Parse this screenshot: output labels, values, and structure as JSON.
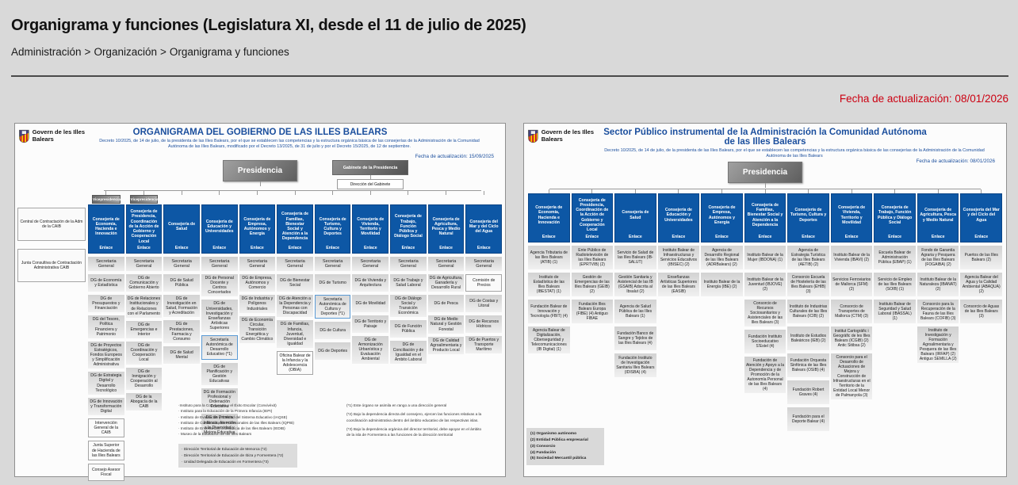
{
  "page": {
    "title": "Organigrama y funciones (Legislatura XI, desde el 11 de julio de 2025)",
    "breadcrumb": [
      "Administración",
      "Organización",
      "Organigrama y funciones"
    ],
    "breadcrumb_separator": ">",
    "update_date": "Fecha de actualización: 08/01/2026",
    "accent_red": "#cc0011",
    "accent_blue": "#1a4e9d",
    "consejeria_blue": "#0d57a5"
  },
  "left_chart": {
    "logo_text": "Govern de les Illes Balears",
    "title": "ORGANIGRAMA DEL GOBIERNO DE LAS ILLES BALEARS",
    "subtitle": "Decreto 10/2025, de 14 de julio, de la presidenta de las Illes Balears, por el que se establecen las competencias y la estructura orgánica básica de las consejerías de la Administración de la Comunidad Autónoma de las Illes Balears, modificado por el Decreto 13/2025, de 31 de julio y por el Decreto 15/2025, de 12 de septiembre.",
    "update_date": "Fecha de actualización: 15/09/2025",
    "presidencia": "Presidencia",
    "gabinete": "Gabinete de la Presidencia",
    "direccion_gabinete": "Dirección del Gabinete",
    "enlace_label": "Enlace",
    "secretaria_general": "Secretaria General",
    "side_boxes": [
      "Central de Contractación de la Adm de la CAIB",
      "Junta Consultiva de Contractación Administrativa CAIB"
    ],
    "columns": [
      {
        "name": "Consejería de Economía, Hacienda e Innovación",
        "vice": "Vicepresidencia",
        "boxes": [
          {
            "t": "DG de Economía y Estadística"
          },
          {
            "t": "DG de Presupuestos y Financiación"
          },
          {
            "t": "DG del Tesoro, Política Financiera y Patrimonio"
          },
          {
            "t": "DG de Proyectos Estratégicos, Fondos Europeos y Simplificación Administrativa"
          },
          {
            "t": "DG de Estrategia Digital y Desarrollo Tecnológico"
          },
          {
            "t": "DG de Innovación y Transformación Digital"
          },
          {
            "t": "Intervención General de la CAIB",
            "s": "outline"
          },
          {
            "t": "Junta Superior de Hacienda de las Illes Balears",
            "s": "outline"
          },
          {
            "t": "Consejo Asesor Fiscal",
            "s": "outline"
          }
        ]
      },
      {
        "name": "Consejería de Presidencia, Coordinación de la Acción de Gobierno y Cooperación Local",
        "vice": "Vicepresidencia",
        "boxes": [
          {
            "t": "DG de Comunicación y Gobierno Abierto"
          },
          {
            "t": "DG de Relaciones Institucionales y de Relaciones con el Parlamento"
          },
          {
            "t": "DG de Emergencias e Interior"
          },
          {
            "t": "DG de Coordinación y Cooperación Local"
          },
          {
            "t": "DG de Inmigración y Cooperación al Desarrollo"
          },
          {
            "t": "DG de la Abogacía de la CAIB"
          }
        ]
      },
      {
        "name": "Consejería de Salud",
        "boxes": [
          {
            "t": "DG de Salud Pública"
          },
          {
            "t": "DG de Investigación en Salud, Formación y Acreditación"
          },
          {
            "t": "DG de Prestaciones, Farmacia y Consumo"
          },
          {
            "t": "DG de Salud Mental"
          }
        ]
      },
      {
        "name": "Consejería de Educación y Universidades",
        "boxes": [
          {
            "t": "DG de Personal Docente y Centros Concertados"
          },
          {
            "t": "DG de Universidades, Investigación y Enseñanzas Artísticas Superiores"
          },
          {
            "t": "Secretaría Autonómica de Desarrollo Educativo (*1)",
            "s": "sa"
          },
          {
            "t": "DG de Planificación y Gestión Educativas"
          },
          {
            "t": "DG de Formación Profesional y Ordenación Educativa"
          },
          {
            "t": "DG de Primera Infancia, Atención a la Diversidad y Mejora Educativa"
          }
        ]
      },
      {
        "name": "Consejería de Empresa, Autónomos y Energía",
        "boxes": [
          {
            "t": "DG de Empresa, Autónomos y Comercio"
          },
          {
            "t": "DG de Industria y Polígonos Industriales"
          },
          {
            "t": "DG de Economía Circular, Transición Energética y Cambio Climático"
          }
        ]
      },
      {
        "name": "Consejería de Familias, Bienestar Social y Atención a la Dependencia",
        "boxes": [
          {
            "t": "DG de Bienestar Social"
          },
          {
            "t": "DG de Atención a la Dependencia y Personas con Discapacidad"
          },
          {
            "t": "DG de Familias, Infancia, Juventud, Diversidad e Igualdad"
          },
          {
            "t": "Oficina Balear de la Infancia y la Adolescencia (OBIA)",
            "s": "outline"
          }
        ]
      },
      {
        "name": "Consejería de Turismo, Cultura y Deportes",
        "boxes": [
          {
            "t": "DG de Turismo"
          },
          {
            "t": "Secretaría Autonómica de Cultura y Deportes (*1)",
            "s": "sa"
          },
          {
            "t": "DG de Cultura"
          },
          {
            "t": "DG de Deportes"
          }
        ]
      },
      {
        "name": "Consejería de Vivienda, Territorio y Movilidad",
        "boxes": [
          {
            "t": "DG de Vivienda y Arquitectura"
          },
          {
            "t": "DG de Movilidad"
          },
          {
            "t": "DG de Territorio y Paisaje"
          },
          {
            "t": "DG de Armonización Urbanística y Evaluación Ambiental"
          }
        ]
      },
      {
        "name": "Consejería de Trabajo, Función Pública y Diálogo Social",
        "boxes": [
          {
            "t": "DG de Trabajo y Salud Laboral"
          },
          {
            "t": "DG de Diálogo Social y Transición Económica"
          },
          {
            "t": "DG de Función Pública"
          },
          {
            "t": "DG de Conciliación y de Igualdad en el Ámbito Laboral"
          }
        ]
      },
      {
        "name": "Consejería de Agricultura, Pesca y Medio Natural",
        "boxes": [
          {
            "t": "DG de Agricultura, Ganadería y Desarrollo Rural"
          },
          {
            "t": "DG de Pesca"
          },
          {
            "t": "DG de Medio Natural y Gestión Forestal"
          },
          {
            "t": "DG de Calidad Agroalimentaria y Producto Local"
          }
        ]
      },
      {
        "name": "Consejería del Mar y del Ciclo del Agua",
        "boxes": [
          {
            "t": "Comisión de Precios",
            "s": "outline"
          },
          {
            "t": "DG de Costas y Litoral"
          },
          {
            "t": "DG de Recursos Hídricos"
          },
          {
            "t": "DG de Puertos y Transporte Marítimo"
          }
        ]
      }
    ],
    "notes": [
      "·Instituto para la Convivencia y el Éxito Escolar (Convivèxit)",
      "· Instituto para la Educación de la Primera Infancia (IEPI)",
      "· Instituto de Evaluación y Calidad del Sistema Educativo (IAQSE)",
      "· Instituto de Cualificaciones Profesionales de las Illes Balears (IQPIB)",
      "· Instituto de Enseñanzas a Distancia de las Illes Balears (IEDIB)",
      "· Museo de la Educación de las Illes Balears"
    ],
    "graybox": [
      "· Dirección Territorial de Educación de Menorca (*2)",
      "· Dirección Territorial de Educación de Ibiza y Formentera (*2)",
      "· Unidad Delegada de Educación en Formentera (*3)"
    ],
    "footnotes": [
      "(*1) Este órgano se asimila en rango a una dirección general",
      "(*2) Bajo la dependencia directa del consejero, ejercen las funciones relativas a la coordinación administrativa dentro del ámbito educativo de las respectivas islas.",
      "(*3) Bajo la dependencia orgánica del director territorial, debe apoyar en el ámbito de la isla de Formentera a las funciones de la dirección territorial"
    ]
  },
  "right_chart": {
    "logo_text": "Govern de les Illes Balears",
    "title": "Sector Público instrumental de la Administración la Comunidad Autónoma de las Illes Balears",
    "subtitle": "Decreto 10/2025, de 14 de julio, de la presidenta de las Illes Balears, por el que se establecen las competencias y la estructura orgánica básica de las consejerías de la Administración de la Comunidad Autónoma de las Illes Balears",
    "update_date": "Fecha de actualización: 08/01/2026",
    "presidencia": "Presidencia",
    "enlace_label": "Enlace",
    "columns": [
      {
        "name": "Consejería de Economía, Hacienda e Innovación",
        "boxes": [
          {
            "t": "Agencia Tributaria de las Illes Balears (ATIB) (1)"
          },
          {
            "t": "Instituto de Estadística de las Illes Balears (IBESTAT) (1)"
          },
          {
            "t": "Fundación Balear de Innovación y Tecnología (FBIT) (4)"
          },
          {
            "t": "Agencia Balear de Digitalización, Ciberseguridad y Telecomunicaciones (IB Digital) (1)"
          }
        ]
      },
      {
        "name": "Consejería de Presidencia, Coordinación de la Acción de Gobierno y Cooperación Local",
        "boxes": [
          {
            "t": "Ente Público de Radiotelevisión de las Illes Balears (EPRTVIB) (2)"
          },
          {
            "t": "Gestión de Emergencias de las Illes Balears (GEIB) (2)"
          },
          {
            "t": "Fundación Illes Balears Europa (FIBE) (4) Antiguo FIBAE"
          }
        ]
      },
      {
        "name": "Consejería de Salud",
        "boxes": [
          {
            "t": "Servicio de Salud de las Illes Balears (IB-SALUT)"
          },
          {
            "t": "Gestión Sanitaria y Asistencial de las IB (GSAIB) Adscrita al Ibsalut (2)"
          },
          {
            "t": "Agencia de Salud Pública de las Illes Balears (1)"
          },
          {
            "t": "Fundación Banco de Sangre y Tejidos de las Illes Balears (4)"
          },
          {
            "t": "Fundación Instituto de Investigación Sanitaria Illes Balears (IDISBA) (4)"
          }
        ]
      },
      {
        "name": "Consejería de Educación y Universidades",
        "boxes": [
          {
            "t": "Instituto Balear de Infraestructuras y Servicios Educativos (IBISEC) (2)"
          },
          {
            "t": "Enseñanzas Artísticas Superiores de las Illes Balears (EASIB)"
          }
        ]
      },
      {
        "name": "Consejería de Empresa, Autónomos y Energía",
        "boxes": [
          {
            "t": "Agencia de Desarrollo Regional de las Illes Balears (ADRBalears) (2)"
          },
          {
            "t": "Instituto Balear de la Energía (IBE) (2)"
          }
        ]
      },
      {
        "name": "Consejería de Familias, Bienestar Social y Atención a la Dependencia",
        "boxes": [
          {
            "t": "Instituto Balear de la Mujer (IBDONA) (1)"
          },
          {
            "t": "Instituto Balear de la Juventud (IBJOVE) (2)"
          },
          {
            "t": "Consorcio de Recursos Sociosanitarios y Asistenciales de las Illes Balears (3)"
          },
          {
            "t": "Fundación Instituto Socioeducativo S'Estel (4)"
          },
          {
            "t": "Fundación de Atención y Apoyo a la Dependencia y de Promoción de la Autonomía Personal de las Illes Balears (4)"
          }
        ]
      },
      {
        "name": "Consejería de Turismo, Cultura y Deportes",
        "boxes": [
          {
            "t": "Agencia de Estrategia Turística de las Illes Balears (AETIB) (2)"
          },
          {
            "t": "Consorcio Escuela de Hostelería de las Illes Balears (EHIB) (3)"
          },
          {
            "t": "Instituto de Industrias Culturales de las Illes Balears (ICIB) (2)"
          },
          {
            "t": "Instituto de Estudios Baleáricos (IEB) (2)"
          },
          {
            "t": "Fundación Orquesta Sinfónica de las Illes Balears (OSIB) (4)"
          },
          {
            "t": "Fundación Robert Graves (4)"
          },
          {
            "t": "Fundación para el Deporte Balear (4)"
          }
        ]
      },
      {
        "name": "Consejería de Vivienda, Territorio y Movilidad",
        "boxes": [
          {
            "t": "Instituto Balear de la Vivienda (IBAVI) (2)"
          },
          {
            "t": "Servicios Ferroviarios de Mallorca (SFM) (2)"
          },
          {
            "t": "Consorcio de Transportes de Mallorca (CTM) (3)"
          },
          {
            "t": "Institut Cartogràfic i Geogràfic de les Illes Balears (ICGIB) (2) Antic Sitibsa (2)"
          },
          {
            "t": "Consorcio para el Desarrollo de Actuaciones de Mejora y Construcción de Infraestructuras en el Territorio de la Entidad Local Menor de Palmanyola (3)"
          }
        ]
      },
      {
        "name": "Consejería de Trabajo, Función Pública y Diálogo Social",
        "boxes": [
          {
            "t": "Escuela Balear de Administración Pública (EBAP) (1)"
          },
          {
            "t": "Servicio de Empleo de las Illes Balears (SOIB) (1)"
          },
          {
            "t": "Instituto Balear de Seguridad y Salud Laboral (IBASSAL) (1)"
          }
        ]
      },
      {
        "name": "Consejería de Agricultura, Pesca y Medio Natural",
        "boxes": [
          {
            "t": "Fondo de Garantía Agraria y Pesquera de las Illes Balears (FOGAIBA) (2)"
          },
          {
            "t": "Instituto Balear de la Naturaleza (IBANAT) (2)"
          },
          {
            "t": "Consorcio para la Recuperación de la Fauna de las Illes Balears (COFIB) (3)"
          },
          {
            "t": "Instituto de Investigación y Formación Agroalimentaria y Pesquera de las Illes Balears (IRFAP) (2) Antiguo SEMILLA (2)"
          }
        ]
      },
      {
        "name": "Consejería del Mar y del Ciclo del Agua",
        "boxes": [
          {
            "t": "Puertos de las Illes Balears (2)"
          },
          {
            "t": "Agencia Balear del Agua y la Calidad Ambiental (ABAQUA) (2)"
          },
          {
            "t": "Consorcio de Aguas de las Illes Balears (3)"
          }
        ]
      },
      {
        "name": "",
        "boxes": []
      }
    ],
    "legend": [
      "(1) Organismo autónomo",
      "(2) Entidad Pública empresarial",
      "(3) Consorcio",
      "(4) Fundación",
      "(5) Sociedad Mercantil pública"
    ]
  }
}
